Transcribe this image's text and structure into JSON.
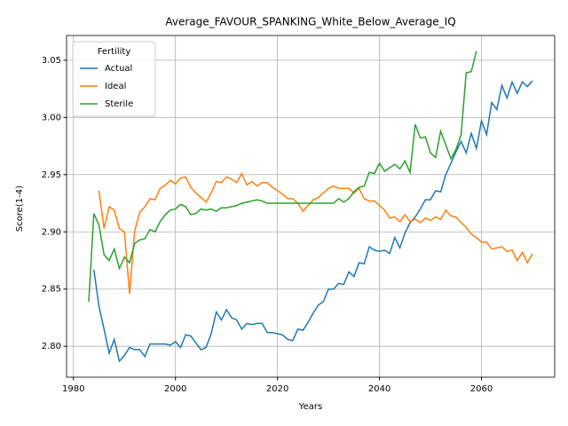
{
  "chart_data": {
    "type": "line",
    "title": "Average_FAVOUR_SPANKING_White_Below_Average_IQ",
    "x_label": "Years",
    "y_label": "Score(1-4)",
    "legend_title": "Fertility",
    "legend": "upper left",
    "grid": true,
    "x": [
      1983,
      1984,
      1985,
      1986,
      1987,
      1988,
      1989,
      1990,
      1991,
      1992,
      1993,
      1994,
      1995,
      1996,
      1997,
      1998,
      1999,
      2000,
      2001,
      2002,
      2003,
      2004,
      2005,
      2006,
      2007,
      2008,
      2009,
      2010,
      2011,
      2012,
      2013,
      2014,
      2015,
      2016,
      2017,
      2018,
      2019,
      2020,
      2021,
      2022,
      2023,
      2024,
      2025,
      2026,
      2027,
      2028,
      2029,
      2030,
      2031,
      2032,
      2033,
      2034,
      2035,
      2036,
      2037,
      2038,
      2039,
      2040,
      2041,
      2042,
      2043,
      2044,
      2045,
      2046,
      2047,
      2048,
      2049,
      2050,
      2051,
      2052,
      2053,
      2054,
      2055,
      2056,
      2057,
      2058,
      2059,
      2060,
      2061,
      2062,
      2063,
      2064,
      2065,
      2066,
      2067,
      2068,
      2069,
      2070
    ],
    "series": [
      {
        "name": "Actual",
        "color": "#1f77b4",
        "values": [
          null,
          2.867,
          2.835,
          2.815,
          2.794,
          2.806,
          2.787,
          2.792,
          2.799,
          2.797,
          2.797,
          2.791,
          2.802,
          2.802,
          2.802,
          2.802,
          2.801,
          2.804,
          2.799,
          2.81,
          2.809,
          2.803,
          2.797,
          2.799,
          2.811,
          2.83,
          2.823,
          2.832,
          2.825,
          2.823,
          2.815,
          2.82,
          2.819,
          2.82,
          2.82,
          2.812,
          2.812,
          2.811,
          2.81,
          2.806,
          2.805,
          2.815,
          2.814,
          2.821,
          2.829,
          2.836,
          2.839,
          2.85,
          2.85,
          2.855,
          2.854,
          2.865,
          2.861,
          2.873,
          2.872,
          2.887,
          2.884,
          2.883,
          2.884,
          2.881,
          2.895,
          2.886,
          2.899,
          2.908,
          2.913,
          2.92,
          2.928,
          2.928,
          2.936,
          2.935,
          2.95,
          2.96,
          2.97,
          2.979,
          2.969,
          2.986,
          2.973,
          2.997,
          2.985,
          3.013,
          3.007,
          3.028,
          3.017,
          3.031,
          3.021,
          3.031,
          3.027,
          3.032
        ]
      },
      {
        "name": "Ideal",
        "color": "#ff7f0e",
        "values": [
          null,
          null,
          2.936,
          2.903,
          2.922,
          2.919,
          2.903,
          2.9,
          2.846,
          2.901,
          2.917,
          2.922,
          2.929,
          2.928,
          2.938,
          2.941,
          2.945,
          2.942,
          2.947,
          2.948,
          2.939,
          2.934,
          2.93,
          2.926,
          2.934,
          2.944,
          2.943,
          2.948,
          2.946,
          2.943,
          2.951,
          2.941,
          2.944,
          2.94,
          2.943,
          2.943,
          2.939,
          2.936,
          2.933,
          2.929,
          2.929,
          2.925,
          2.918,
          2.923,
          2.928,
          2.93,
          2.934,
          2.938,
          2.94,
          2.938,
          2.938,
          2.938,
          2.934,
          2.938,
          2.929,
          2.927,
          2.927,
          2.923,
          2.919,
          2.912,
          2.913,
          2.909,
          2.915,
          2.909,
          2.911,
          2.908,
          2.912,
          2.91,
          2.913,
          2.911,
          2.919,
          2.914,
          2.913,
          2.908,
          2.904,
          2.898,
          2.895,
          2.891,
          2.891,
          2.885,
          2.886,
          2.887,
          2.883,
          2.884,
          2.875,
          2.882,
          2.873,
          2.881
        ]
      },
      {
        "name": "Sterile",
        "color": "#2ca02c",
        "values": [
          2.839,
          2.916,
          2.906,
          2.88,
          2.875,
          2.885,
          2.868,
          2.878,
          2.873,
          2.89,
          2.893,
          2.894,
          2.902,
          2.9,
          2.909,
          2.915,
          2.919,
          2.92,
          2.924,
          2.922,
          2.915,
          2.916,
          2.92,
          2.919,
          2.92,
          2.918,
          2.921,
          2.921,
          2.922,
          2.923,
          2.925,
          2.926,
          2.927,
          2.928,
          2.927,
          2.925,
          2.925,
          2.925,
          2.925,
          2.925,
          2.925,
          2.925,
          2.925,
          2.925,
          2.925,
          2.925,
          2.925,
          2.925,
          2.925,
          2.929,
          2.926,
          2.929,
          2.935,
          2.939,
          2.94,
          2.952,
          2.951,
          2.96,
          2.953,
          2.956,
          2.959,
          2.955,
          2.962,
          2.952,
          2.994,
          2.982,
          2.983,
          2.969,
          2.965,
          2.988,
          2.976,
          2.964,
          2.972,
          2.985,
          3.039,
          3.04,
          3.058,
          null,
          null,
          null,
          null,
          null,
          null,
          null,
          null,
          null,
          null,
          null
        ]
      }
    ],
    "xlim": [
      1978.65,
      2074.35
    ],
    "xticks": [
      1980,
      2000,
      2020,
      2040,
      2060
    ],
    "ylim": [
      2.773,
      3.0716
    ],
    "yticks": [
      {
        "value": 2.8,
        "label": "2.80"
      },
      {
        "value": 2.85,
        "label": "2.85"
      },
      {
        "value": 2.9,
        "label": "2.90"
      },
      {
        "value": 2.95,
        "label": "2.95"
      },
      {
        "value": 3.0,
        "label": "3.00"
      },
      {
        "value": 3.05,
        "label": "3.05"
      }
    ]
  }
}
